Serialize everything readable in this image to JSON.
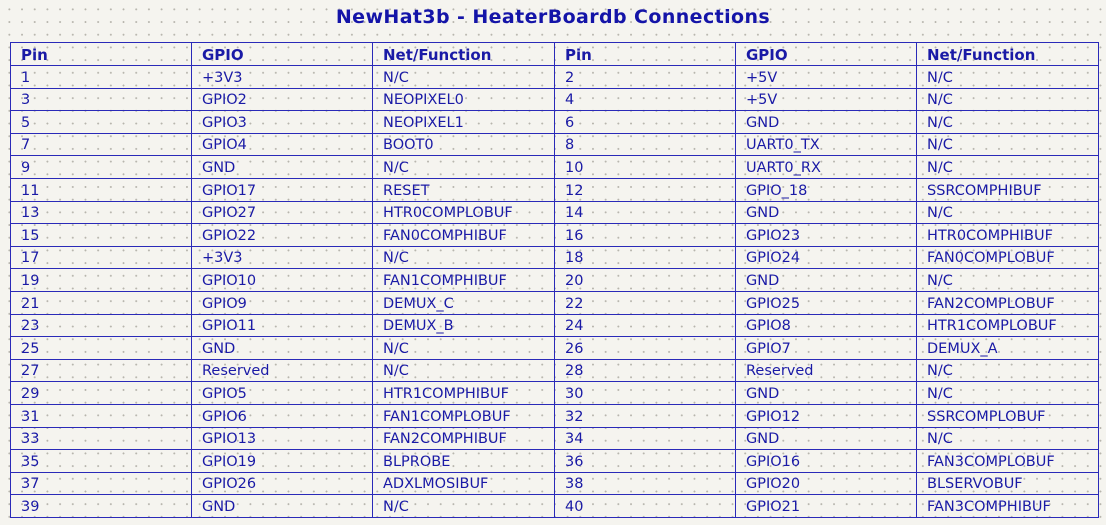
{
  "title": "NewHat3b - HeaterBoardb Connections",
  "headers": [
    "Pin",
    "GPIO",
    "Net/Function",
    "Pin",
    "GPIO",
    "Net/Function"
  ],
  "rows": [
    [
      "1",
      "+3V3",
      "N/C",
      "2",
      "+5V",
      "N/C"
    ],
    [
      "3",
      "GPIO2",
      "NEOPIXEL0",
      "4",
      "+5V",
      "N/C"
    ],
    [
      "5",
      "GPIO3",
      "NEOPIXEL1",
      "6",
      "GND",
      "N/C"
    ],
    [
      "7",
      "GPIO4",
      "BOOT0",
      "8",
      "UART0_TX",
      "N/C"
    ],
    [
      "9",
      "GND",
      "N/C",
      "10",
      "UART0_RX",
      "N/C"
    ],
    [
      "11",
      "GPIO17",
      "RESET",
      "12",
      "GPIO_18",
      "SSRCOMPHIBUF"
    ],
    [
      "13",
      "GPIO27",
      "HTR0COMPLOBUF",
      "14",
      "GND",
      "N/C"
    ],
    [
      "15",
      "GPIO22",
      "FAN0COMPHIBUF",
      "16",
      "GPIO23",
      "HTR0COMPHIBUF"
    ],
    [
      "17",
      "+3V3",
      "N/C",
      "18",
      "GPIO24",
      "FAN0COMPLOBUF"
    ],
    [
      "19",
      "GPIO10",
      "FAN1COMPHIBUF",
      "20",
      "GND",
      "N/C"
    ],
    [
      "21",
      "GPIO9",
      "DEMUX_C",
      "22",
      "GPIO25",
      "FAN2COMPLOBUF"
    ],
    [
      "23",
      "GPIO11",
      "DEMUX_B",
      "24",
      "GPIO8",
      "HTR1COMPLOBUF"
    ],
    [
      "25",
      "GND",
      "N/C",
      "26",
      "GPIO7",
      "DEMUX_A"
    ],
    [
      "27",
      "Reserved",
      "N/C",
      "28",
      "Reserved",
      "N/C"
    ],
    [
      "29",
      "GPIO5",
      "HTR1COMPHIBUF",
      "30",
      "GND",
      "N/C"
    ],
    [
      "31",
      "GPIO6",
      "FAN1COMPLOBUF",
      "32",
      "GPIO12",
      "SSRCOMPLOBUF"
    ],
    [
      "33",
      "GPIO13",
      "FAN2COMPHIBUF",
      "34",
      "GND",
      "N/C"
    ],
    [
      "35",
      "GPIO19",
      "BLPROBE",
      "36",
      "GPIO16",
      "FAN3COMPLOBUF"
    ],
    [
      "37",
      "GPIO26",
      "ADXLMOSIBUF",
      "38",
      "GPIO20",
      "BLSERVOBUF"
    ],
    [
      "39",
      "GND",
      "N/C",
      "40",
      "GPIO21",
      "FAN3COMPHIBUF"
    ]
  ],
  "colors": {
    "text": "#1a1aa6",
    "grid_line": "#2a2ab8",
    "background": "#f5f4ef"
  }
}
